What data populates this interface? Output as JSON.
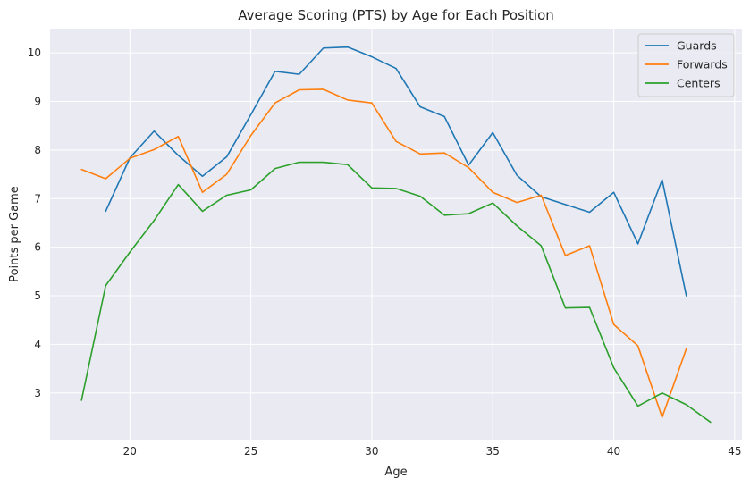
{
  "chart_data": {
    "type": "line",
    "title": "Average Scoring (PTS) by Age for Each Position",
    "xlabel": "Age",
    "ylabel": "Points per Game",
    "xlim": [
      16.7,
      45.3
    ],
    "ylim": [
      2.04,
      10.5
    ],
    "xticks": [
      20,
      25,
      30,
      35,
      40,
      45
    ],
    "yticks": [
      3,
      4,
      5,
      6,
      7,
      8,
      9,
      10
    ],
    "grid": true,
    "legend": "top-right",
    "series": [
      {
        "name": "Guards",
        "color": "#1f77b4",
        "x": [
          19,
          20,
          21,
          22,
          23,
          24,
          25,
          26,
          27,
          28,
          29,
          30,
          31,
          32,
          33,
          34,
          35,
          36,
          37,
          38,
          39,
          40,
          41,
          42,
          43
        ],
        "y": [
          6.74,
          7.84,
          8.39,
          7.89,
          7.46,
          7.86,
          8.73,
          9.62,
          9.56,
          10.1,
          10.12,
          9.92,
          9.68,
          8.89,
          8.69,
          7.69,
          8.36,
          7.48,
          7.04,
          6.88,
          6.72,
          7.13,
          6.07,
          7.39,
          5.0
        ]
      },
      {
        "name": "Forwards",
        "color": "#ff7f0e",
        "x": [
          18,
          19,
          20,
          21,
          22,
          23,
          24,
          25,
          26,
          27,
          28,
          29,
          30,
          31,
          32,
          33,
          34,
          35,
          36,
          37,
          38,
          39,
          40,
          41,
          42,
          43
        ],
        "y": [
          7.6,
          7.41,
          7.83,
          8.01,
          8.28,
          7.13,
          7.5,
          8.3,
          8.97,
          9.24,
          9.25,
          9.03,
          8.97,
          8.18,
          7.92,
          7.94,
          7.64,
          7.13,
          6.92,
          7.07,
          5.83,
          6.03,
          4.41,
          3.97,
          2.5,
          3.91
        ]
      },
      {
        "name": "Centers",
        "color": "#2ca02c",
        "x": [
          18,
          19,
          20,
          21,
          22,
          23,
          24,
          25,
          26,
          27,
          28,
          29,
          30,
          31,
          32,
          33,
          34,
          35,
          36,
          37,
          38,
          39,
          40,
          41,
          42,
          43,
          44
        ],
        "y": [
          2.85,
          5.21,
          5.9,
          6.55,
          7.29,
          6.74,
          7.07,
          7.18,
          7.62,
          7.75,
          7.75,
          7.7,
          7.22,
          7.21,
          7.05,
          6.66,
          6.69,
          6.91,
          6.44,
          6.03,
          4.75,
          4.76,
          3.52,
          2.73,
          3.0,
          2.76,
          2.4
        ]
      }
    ]
  }
}
